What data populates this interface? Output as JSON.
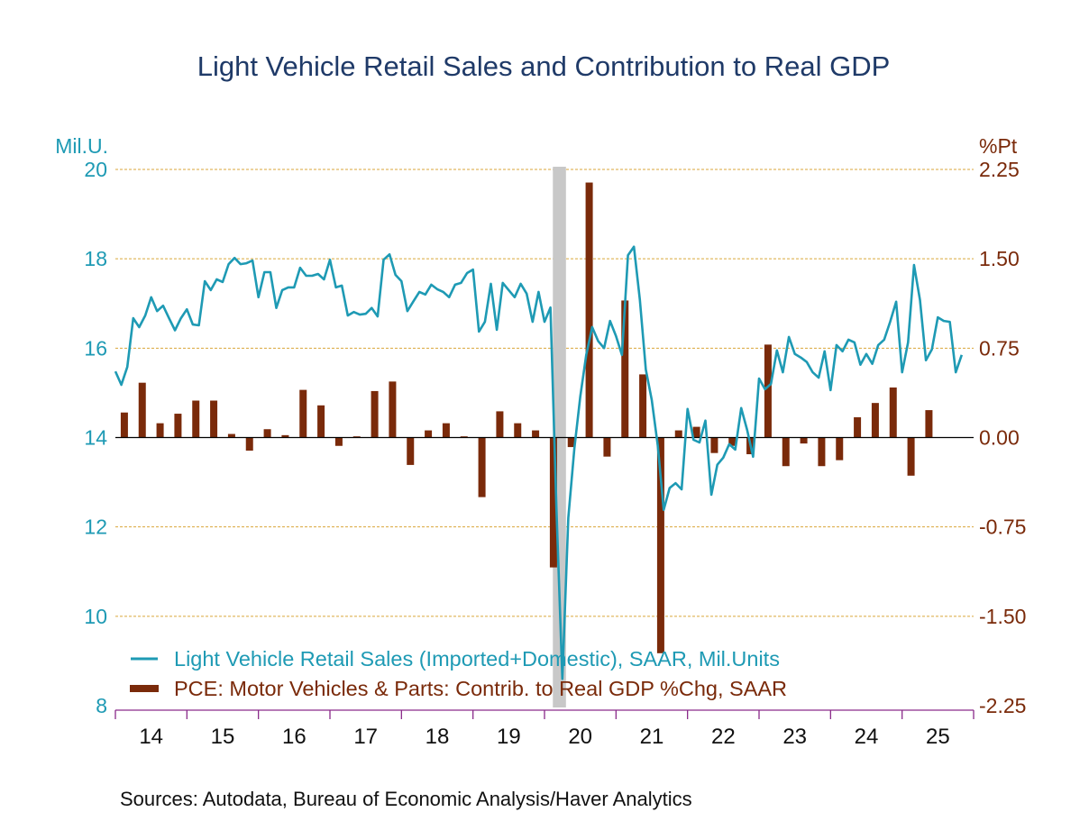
{
  "chart_data": {
    "type": "line+bar",
    "title": "Light Vehicle Retail Sales and Contribution to Real GDP",
    "source": "Sources:  Autodata, Bureau of Economic Analysis/Haver Analytics",
    "left_axis": {
      "unit_label": "Mil.U.",
      "ylim": [
        8,
        20
      ],
      "ticks": [
        "20",
        "18",
        "16",
        "14",
        "12",
        "10",
        "8"
      ],
      "tick_values": [
        20,
        18,
        16,
        14,
        12,
        10,
        8
      ]
    },
    "right_axis": {
      "unit_label": "%Pt",
      "ylim": [
        -2.25,
        2.25
      ],
      "ticks": [
        "2.25",
        "1.50",
        "0.75",
        "0.00",
        "-0.75",
        "-1.50",
        "-2.25"
      ],
      "tick_values": [
        2.25,
        1.5,
        0.75,
        0,
        -0.75,
        -1.5,
        -2.25
      ]
    },
    "x_axis": {
      "range_years": [
        2014,
        2026
      ],
      "tick_labels": [
        "14",
        "15",
        "16",
        "17",
        "18",
        "19",
        "20",
        "21",
        "22",
        "23",
        "24",
        "25"
      ]
    },
    "grid": true,
    "recession_shading": {
      "start": "2020-02",
      "end": "2020-04",
      "color": "#c8c8c8"
    },
    "colors": {
      "line": "#1e9ab4",
      "bars": "#7a2a0a",
      "title": "#1f3a68",
      "grid": "#d9a63a",
      "axis": "#8a2a8a",
      "zero_line": "#000000"
    },
    "legend": {
      "placement": "bottom-left",
      "items": [
        {
          "label": "Light Vehicle Retail Sales (Imported+Domestic), SAAR, Mil.Units",
          "kind": "line"
        },
        {
          "label": "PCE: Motor Vehicles & Parts: Contrib. to Real GDP %Chg, SAAR",
          "kind": "bar"
        }
      ]
    },
    "series": [
      {
        "name": "Light Vehicle Retail Sales (Imported+Domestic), SAAR, Mil.Units",
        "axis": "left",
        "frequency": "monthly",
        "start": "2014-01",
        "values": [
          15.48,
          15.18,
          15.58,
          16.67,
          16.47,
          16.73,
          17.14,
          16.83,
          16.95,
          16.67,
          16.4,
          16.67,
          16.87,
          16.53,
          16.51,
          17.5,
          17.3,
          17.54,
          17.48,
          17.88,
          18.02,
          17.88,
          17.9,
          17.96,
          17.14,
          17.7,
          17.7,
          16.9,
          17.3,
          17.36,
          17.36,
          17.8,
          17.62,
          17.62,
          17.66,
          17.54,
          17.98,
          17.36,
          17.4,
          16.73,
          16.81,
          16.75,
          16.77,
          16.9,
          16.71,
          17.98,
          18.1,
          17.64,
          17.5,
          16.83,
          17.05,
          17.26,
          17.2,
          17.42,
          17.32,
          17.26,
          17.14,
          17.42,
          17.46,
          17.68,
          17.76,
          16.37,
          16.59,
          17.44,
          16.41,
          17.46,
          17.3,
          17.14,
          17.44,
          17.22,
          16.59,
          17.26,
          16.59,
          16.91,
          12.44,
          8.6,
          12.2,
          13.75,
          14.92,
          15.85,
          16.47,
          16.16,
          16.0,
          16.61,
          16.27,
          15.85,
          18.08,
          18.27,
          17.08,
          15.52,
          14.84,
          13.83,
          12.38,
          12.87,
          12.98,
          12.84,
          14.64,
          13.95,
          13.89,
          14.38,
          12.72,
          13.39,
          13.55,
          13.85,
          13.73,
          14.66,
          14.17,
          13.57,
          15.32,
          15.08,
          15.2,
          15.95,
          15.46,
          16.25,
          15.87,
          15.79,
          15.69,
          15.46,
          15.34,
          15.93,
          15.06,
          16.07,
          15.93,
          16.19,
          16.13,
          15.63,
          15.87,
          15.65,
          16.07,
          16.19,
          16.59,
          17.04,
          15.46,
          16.13,
          17.86,
          17.08,
          15.73,
          15.97,
          16.69,
          16.61,
          16.59,
          15.46,
          15.85
        ]
      },
      {
        "name": "PCE: Motor Vehicles & Parts: Contrib. to Real GDP %Chg, SAAR",
        "axis": "right",
        "frequency": "quarterly",
        "start": "2014-Q1",
        "values": [
          0.21,
          0.46,
          0.12,
          0.2,
          0.31,
          0.31,
          0.03,
          -0.11,
          0.07,
          0.02,
          0.4,
          0.27,
          -0.07,
          0.01,
          0.39,
          0.47,
          -0.23,
          0.06,
          0.12,
          0.01,
          -0.5,
          0.22,
          0.12,
          0.06,
          -1.09,
          -0.08,
          2.14,
          -0.16,
          1.15,
          0.53,
          -1.81,
          0.06,
          0.09,
          -0.13,
          -0.07,
          -0.14,
          0.78,
          -0.24,
          -0.05,
          -0.24,
          -0.19,
          0.17,
          0.29,
          0.42,
          -0.32,
          0.23
        ]
      }
    ]
  }
}
